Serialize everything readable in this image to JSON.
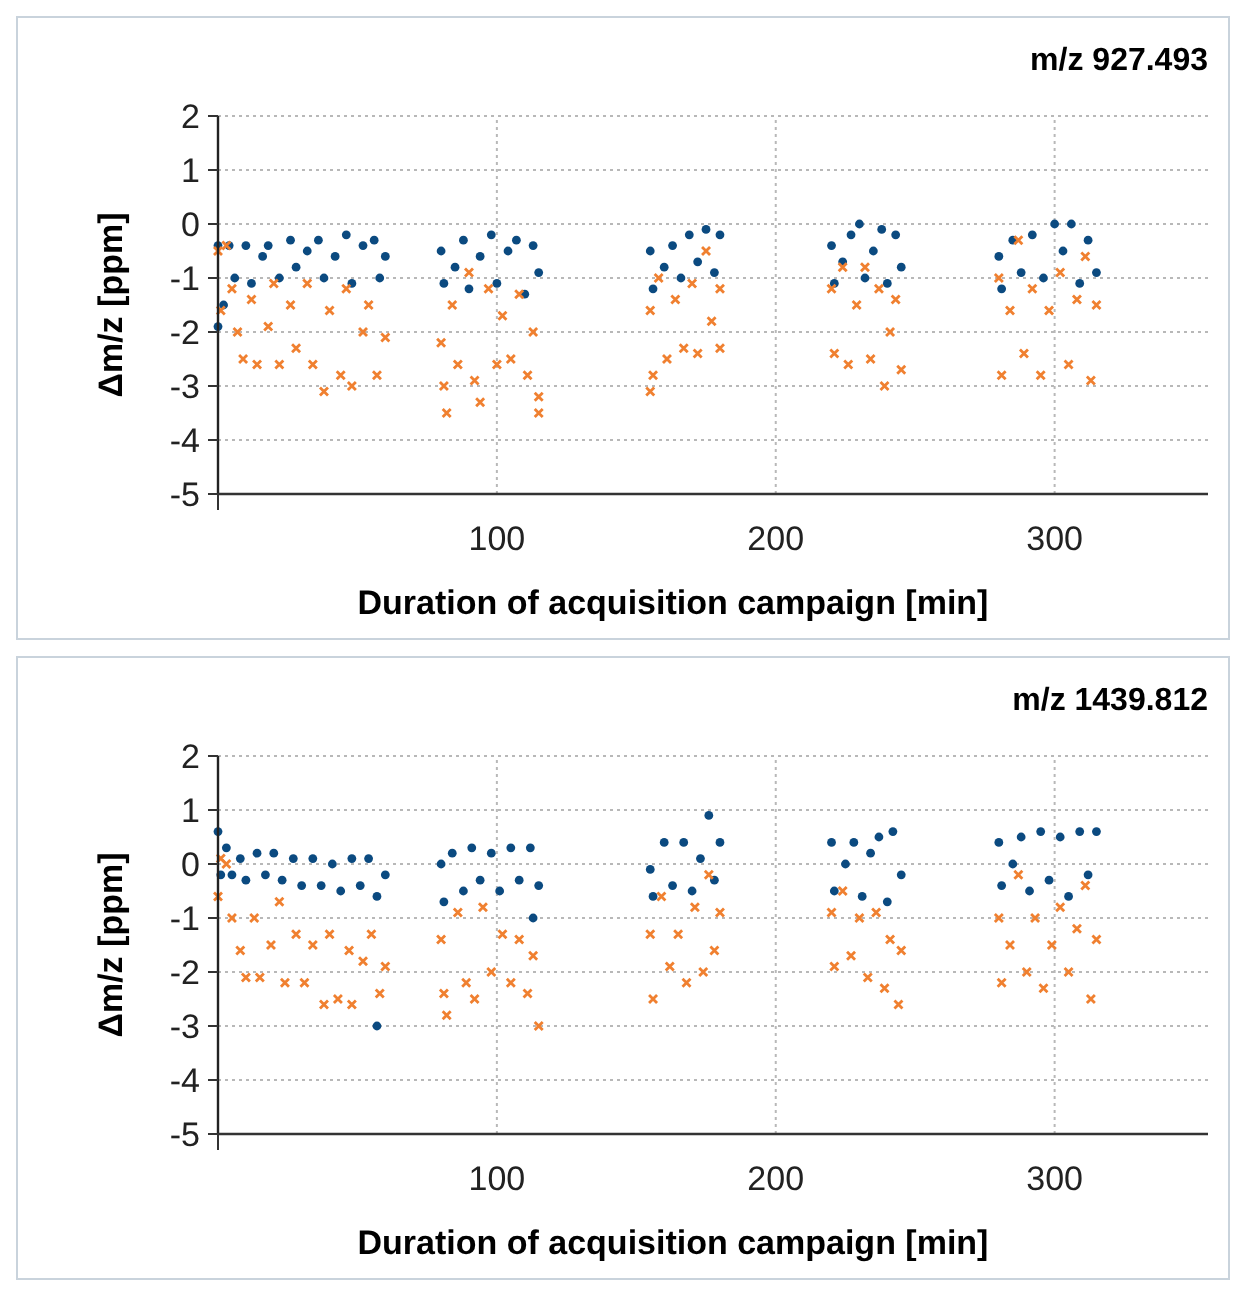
{
  "chart_data": [
    {
      "type": "scatter",
      "title": "m/z 927.493",
      "xlabel": "Duration of acquisition campaign [min]",
      "ylabel": "Δm/z [ppm]",
      "xlim": [
        0,
        355
      ],
      "xticks": [
        100,
        200,
        300
      ],
      "ylim": [
        -5,
        2
      ],
      "yticks": [
        -5,
        -4,
        -3,
        -2,
        -1,
        0,
        1,
        2
      ],
      "grid": true,
      "series": [
        {
          "color": "#0b4a80",
          "marker": "circle",
          "x": [
            0,
            0,
            2,
            4,
            6,
            10,
            12,
            16,
            18,
            22,
            26,
            28,
            32,
            36,
            38,
            42,
            46,
            48,
            52,
            56,
            58,
            60,
            80,
            81,
            85,
            88,
            90,
            94,
            98,
            100,
            104,
            107,
            110,
            113,
            115,
            155,
            156,
            160,
            163,
            166,
            169,
            172,
            175,
            178,
            180,
            220,
            221,
            224,
            227,
            230,
            232,
            235,
            238,
            240,
            243,
            245,
            280,
            281,
            285,
            288,
            292,
            296,
            300,
            303,
            306,
            309,
            312,
            315
          ],
          "values": [
            -0.4,
            -1.9,
            -1.5,
            -0.4,
            -1.0,
            -0.4,
            -1.1,
            -0.6,
            -0.4,
            -1.0,
            -0.3,
            -0.8,
            -0.5,
            -0.3,
            -1.0,
            -0.6,
            -0.2,
            -1.1,
            -0.4,
            -0.3,
            -1.0,
            -0.6,
            -0.5,
            -1.1,
            -0.8,
            -0.3,
            -1.2,
            -0.6,
            -0.2,
            -1.1,
            -0.5,
            -0.3,
            -1.3,
            -0.4,
            -0.9,
            -0.5,
            -1.2,
            -0.8,
            -0.4,
            -1.0,
            -0.2,
            -0.7,
            -0.1,
            -0.9,
            -0.2,
            -0.4,
            -1.1,
            -0.7,
            -0.2,
            0,
            -1.0,
            -0.5,
            -0.1,
            -1.1,
            -0.2,
            -0.8,
            -0.6,
            -1.2,
            -0.3,
            -0.9,
            -0.2,
            -1.0,
            0,
            -0.5,
            0,
            -1.1,
            -0.3,
            -0.9
          ]
        },
        {
          "color": "#f08030",
          "marker": "cross",
          "x": [
            0,
            1,
            3,
            5,
            7,
            9,
            12,
            14,
            18,
            20,
            22,
            26,
            28,
            32,
            34,
            38,
            40,
            44,
            46,
            48,
            52,
            54,
            57,
            60,
            80,
            81,
            82,
            84,
            86,
            90,
            92,
            94,
            97,
            100,
            102,
            105,
            108,
            111,
            113,
            115,
            115,
            155,
            155,
            156,
            158,
            161,
            164,
            167,
            170,
            172,
            175,
            177,
            180,
            180,
            220,
            221,
            224,
            226,
            229,
            232,
            234,
            237,
            239,
            241,
            243,
            245,
            280,
            281,
            284,
            287,
            289,
            292,
            295,
            298,
            302,
            305,
            308,
            311,
            313,
            315
          ],
          "values": [
            -0.5,
            -1.6,
            -0.4,
            -1.2,
            -2.0,
            -2.5,
            -1.4,
            -2.6,
            -1.9,
            -1.1,
            -2.6,
            -1.5,
            -2.3,
            -1.1,
            -2.6,
            -3.1,
            -1.6,
            -2.8,
            -1.2,
            -3.0,
            -2.0,
            -1.5,
            -2.8,
            -2.1,
            -2.2,
            -3.0,
            -3.5,
            -1.5,
            -2.6,
            -0.9,
            -2.9,
            -3.3,
            -1.2,
            -2.6,
            -1.7,
            -2.5,
            -1.3,
            -2.8,
            -2.0,
            -3.2,
            -3.5,
            -1.6,
            -3.1,
            -2.8,
            -1.0,
            -2.5,
            -1.4,
            -2.3,
            -1.1,
            -2.4,
            -0.5,
            -1.8,
            -1.2,
            -2.3,
            -1.2,
            -2.4,
            -0.8,
            -2.6,
            -1.5,
            -0.8,
            -2.5,
            -1.2,
            -3.0,
            -2.0,
            -1.4,
            -2.7,
            -1.0,
            -2.8,
            -1.6,
            -0.3,
            -2.4,
            -1.2,
            -2.8,
            -1.6,
            -0.9,
            -2.6,
            -1.4,
            -0.6,
            -2.9,
            -1.5
          ]
        }
      ]
    },
    {
      "type": "scatter",
      "title": "m/z 1439.812",
      "xlabel": "Duration of acquisition campaign [min]",
      "ylabel": "Δm/z [ppm]",
      "xlim": [
        0,
        355
      ],
      "xticks": [
        100,
        200,
        300
      ],
      "ylim": [
        -5,
        2
      ],
      "yticks": [
        -5,
        -4,
        -3,
        -2,
        -1,
        0,
        1,
        2
      ],
      "grid": true,
      "series": [
        {
          "color": "#0b4a80",
          "marker": "circle",
          "x": [
            0,
            1,
            3,
            5,
            8,
            10,
            14,
            17,
            20,
            23,
            27,
            30,
            34,
            37,
            41,
            44,
            48,
            51,
            54,
            57,
            57,
            60,
            80,
            81,
            84,
            88,
            91,
            94,
            98,
            101,
            105,
            108,
            112,
            113,
            115,
            155,
            156,
            160,
            163,
            167,
            170,
            173,
            176,
            178,
            180,
            220,
            221,
            225,
            228,
            231,
            234,
            237,
            240,
            242,
            245,
            280,
            281,
            285,
            288,
            291,
            295,
            298,
            302,
            305,
            309,
            312,
            315
          ],
          "values": [
            0.6,
            -0.2,
            0.3,
            -0.2,
            0.1,
            -0.3,
            0.2,
            -0.2,
            0.2,
            -0.3,
            0.1,
            -0.4,
            0.1,
            -0.4,
            0.0,
            -0.5,
            0.1,
            -0.4,
            0.1,
            -0.6,
            -3.0,
            -0.2,
            0.0,
            -0.7,
            0.2,
            -0.5,
            0.3,
            -0.3,
            0.2,
            -0.5,
            0.3,
            -0.3,
            0.3,
            -1.0,
            -0.4,
            -0.1,
            -0.6,
            0.4,
            -0.4,
            0.4,
            -0.5,
            0.1,
            0.9,
            -0.3,
            0.4,
            0.4,
            -0.5,
            0.0,
            0.4,
            -0.6,
            0.2,
            0.5,
            -0.7,
            0.6,
            -0.2,
            0.4,
            -0.4,
            0.0,
            0.5,
            -0.5,
            0.6,
            -0.3,
            0.5,
            -0.6,
            0.6,
            -0.2,
            0.6
          ]
        },
        {
          "color": "#f08030",
          "marker": "cross",
          "x": [
            0,
            1,
            3,
            5,
            8,
            10,
            13,
            15,
            19,
            22,
            24,
            28,
            31,
            34,
            38,
            40,
            43,
            47,
            48,
            52,
            55,
            58,
            60,
            80,
            81,
            82,
            86,
            89,
            92,
            95,
            98,
            102,
            105,
            108,
            111,
            113,
            115,
            155,
            156,
            159,
            162,
            165,
            168,
            171,
            174,
            176,
            178,
            180,
            220,
            221,
            224,
            227,
            230,
            233,
            236,
            239,
            241,
            244,
            245,
            280,
            281,
            284,
            287,
            290,
            293,
            296,
            299,
            302,
            305,
            308,
            311,
            313,
            315
          ],
          "values": [
            -0.6,
            0.1,
            0.0,
            -1.0,
            -1.6,
            -2.1,
            -1.0,
            -2.1,
            -1.5,
            -0.7,
            -2.2,
            -1.3,
            -2.2,
            -1.5,
            -2.6,
            -1.3,
            -2.5,
            -1.6,
            -2.6,
            -1.8,
            -1.3,
            -2.4,
            -1.9,
            -1.4,
            -2.4,
            -2.8,
            -0.9,
            -2.2,
            -2.5,
            -0.8,
            -2.0,
            -1.3,
            -2.2,
            -1.4,
            -2.4,
            -1.7,
            -3.0,
            -1.3,
            -2.5,
            -0.6,
            -1.9,
            -1.3,
            -2.2,
            -0.8,
            -2.0,
            -0.2,
            -1.6,
            -0.9,
            -0.9,
            -1.9,
            -0.5,
            -1.7,
            -1.0,
            -2.1,
            -0.9,
            -2.3,
            -1.4,
            -2.6,
            -1.6,
            -1.0,
            -2.2,
            -1.5,
            -0.2,
            -2.0,
            -1.0,
            -2.3,
            -1.5,
            -0.8,
            -2.0,
            -1.2,
            -0.4,
            -2.5,
            -1.4
          ]
        }
      ]
    }
  ]
}
